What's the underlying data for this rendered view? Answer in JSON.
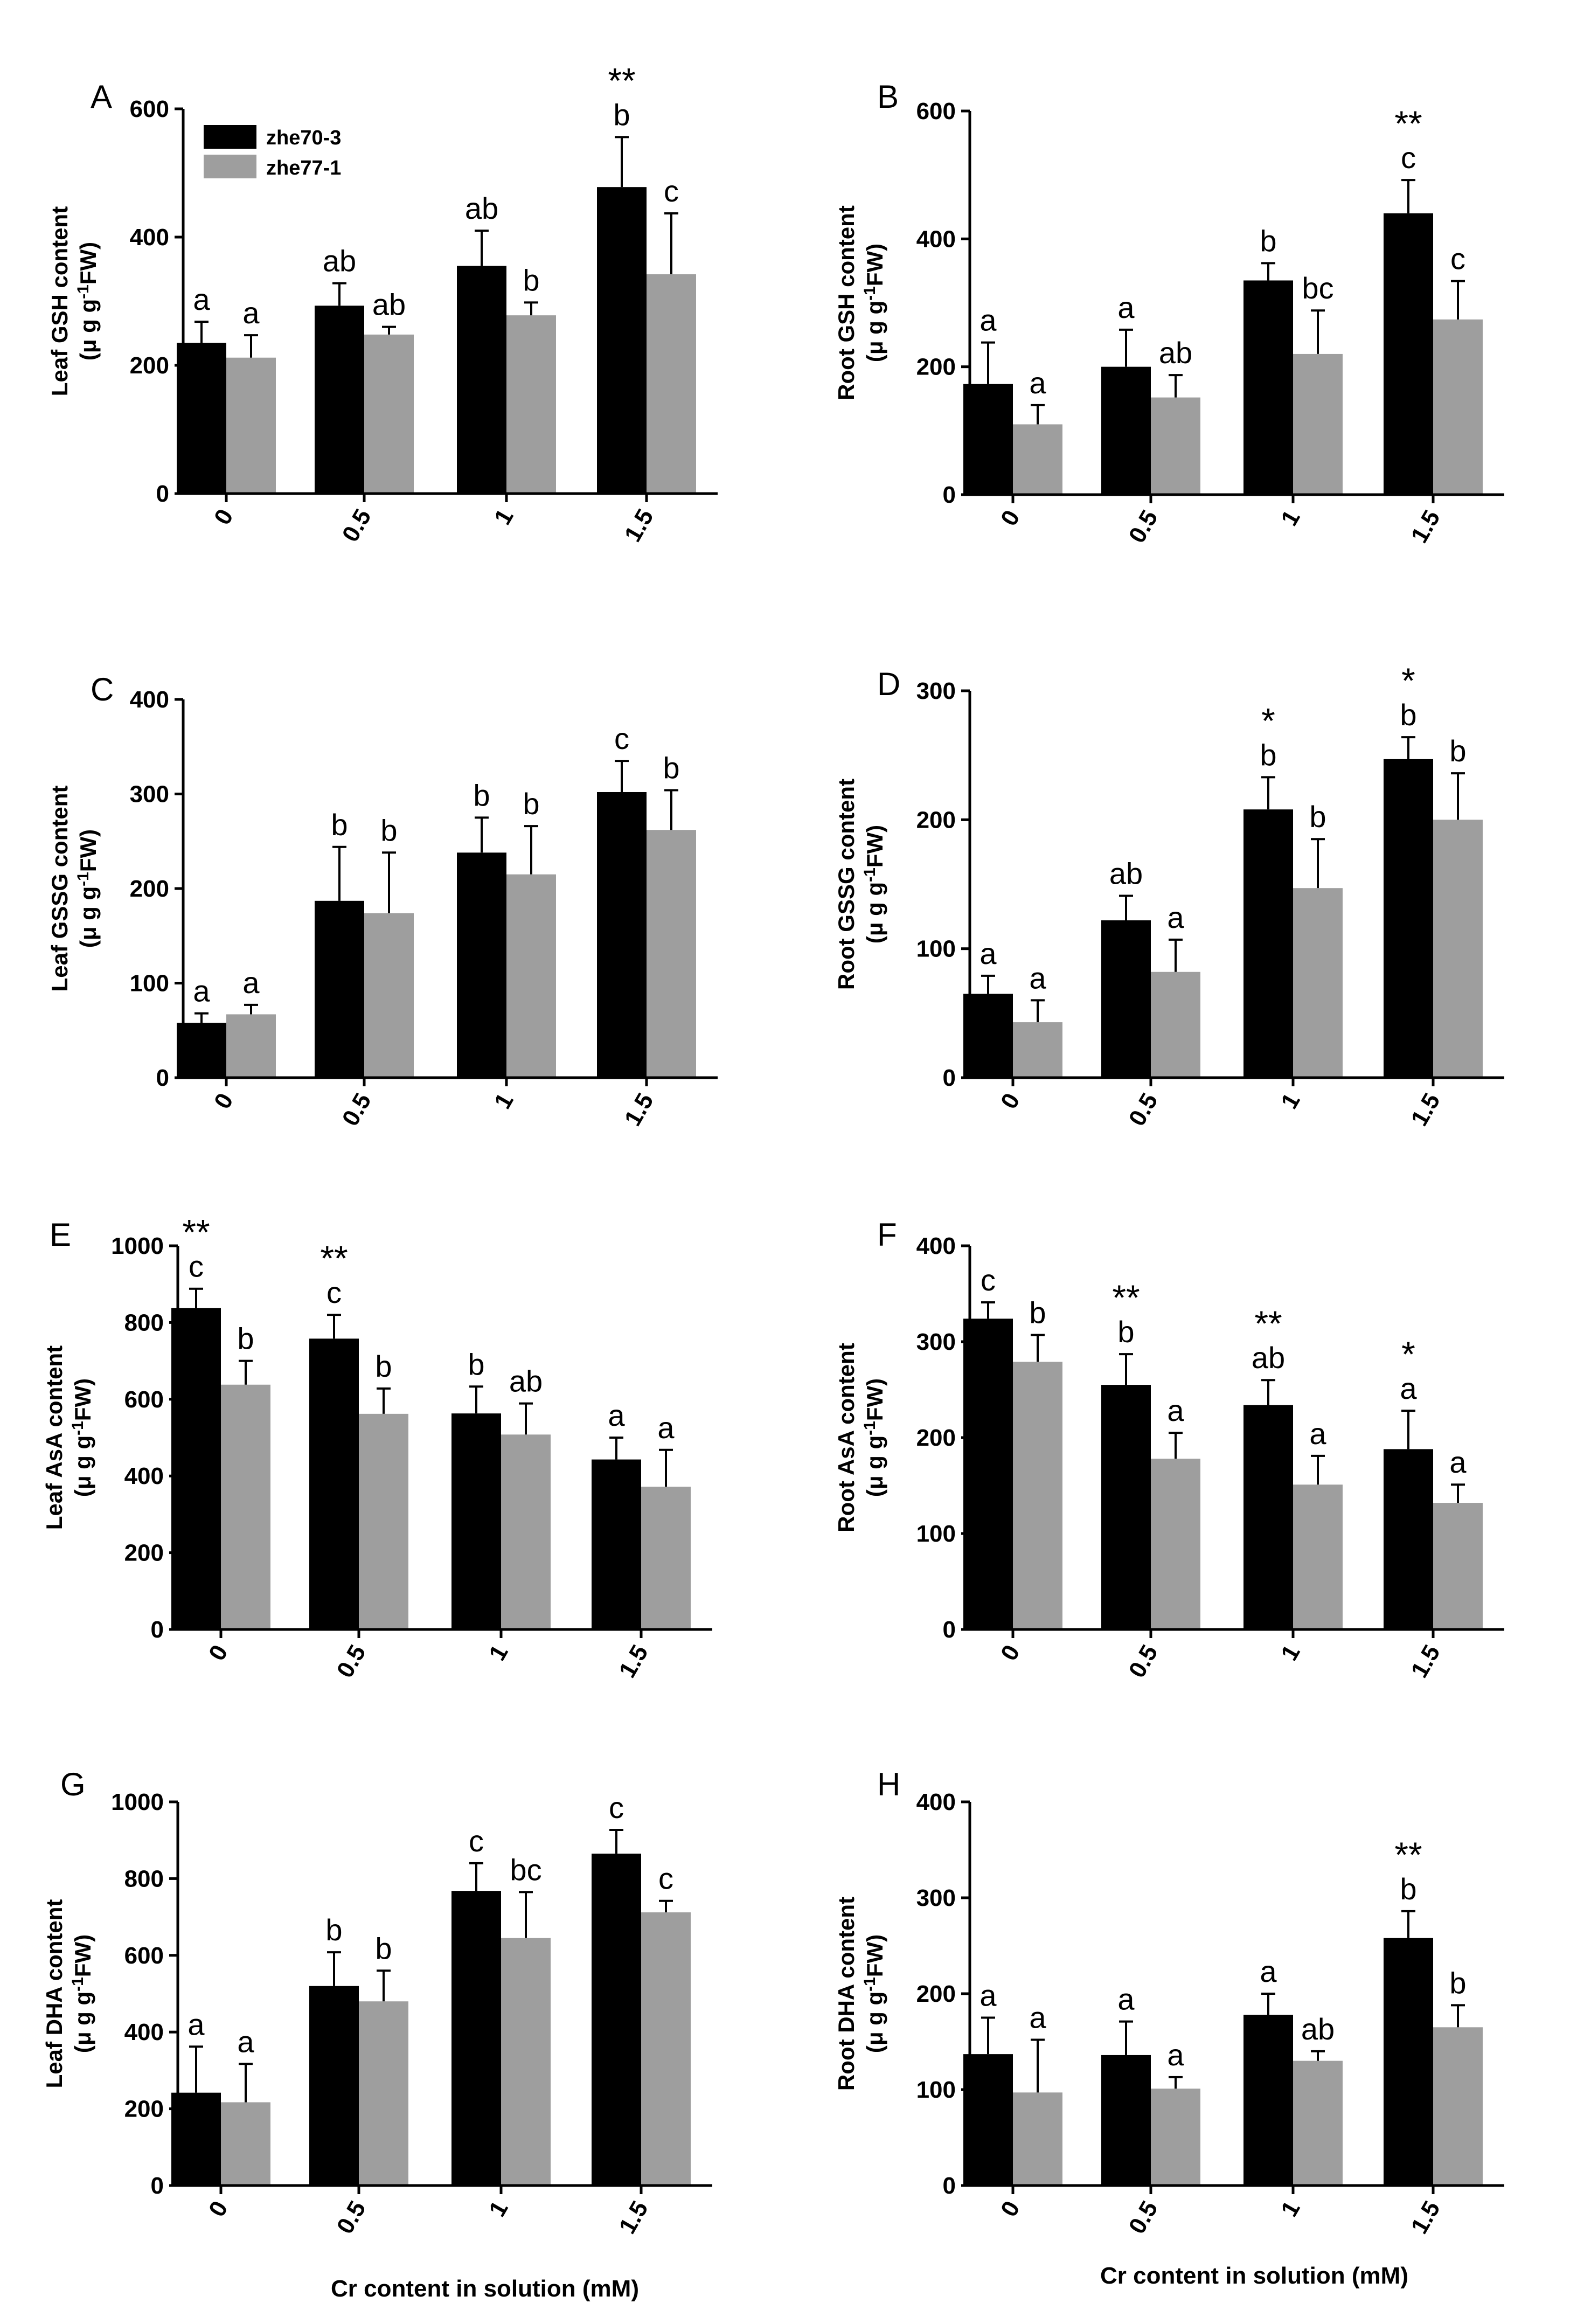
{
  "colors": {
    "zhe70_3": "#000000",
    "zhe77_1": "#9e9e9e",
    "axis": "#000000"
  },
  "legend": [
    "zhe70-3",
    "zhe77-1"
  ],
  "xlabel": "Cr content in solution (mM)",
  "chart_data": [
    {
      "type": "bar",
      "panel": "A",
      "title": "",
      "ylabel": "Leaf GSH content",
      "yunit": "(μ g g-1FW)",
      "ylabel_tspans": [
        "(μ g g",
        "-1",
        "FW)"
      ],
      "categories": [
        "0",
        "0.5",
        "1",
        "1.5"
      ],
      "ylim": [
        0,
        600
      ],
      "yticks": [
        "0",
        "200",
        "400",
        "600"
      ],
      "series": [
        {
          "name": "zhe70-3",
          "values": [
            235,
            293,
            355,
            478
          ],
          "errors": [
            33,
            35,
            55,
            78
          ],
          "letters": [
            "a",
            "ab",
            "ab",
            "b"
          ]
        },
        {
          "name": "zhe77-1",
          "values": [
            212,
            248,
            278,
            342
          ],
          "errors": [
            35,
            12,
            20,
            95
          ],
          "letters": [
            "a",
            "ab",
            "b",
            "c"
          ]
        }
      ],
      "stars": [
        "",
        "",
        "",
        "**"
      ]
    },
    {
      "type": "bar",
      "panel": "B",
      "title": "",
      "ylabel": "Root GSH content",
      "yunit": "(μ g g-1FW)",
      "ylabel_tspans": [
        "(μ g g",
        "-1",
        "FW)"
      ],
      "categories": [
        "0",
        "0.5",
        "1",
        "1.5"
      ],
      "ylim": [
        0,
        600
      ],
      "yticks": [
        "0",
        "200",
        "400",
        "600"
      ],
      "series": [
        {
          "name": "zhe70-3",
          "values": [
            173,
            200,
            335,
            440
          ],
          "errors": [
            65,
            58,
            27,
            52
          ],
          "letters": [
            "a",
            "a",
            "b",
            "c"
          ]
        },
        {
          "name": "zhe77-1",
          "values": [
            110,
            152,
            220,
            274
          ],
          "errors": [
            30,
            35,
            68,
            60
          ],
          "letters": [
            "a",
            "ab",
            "bc",
            "c"
          ]
        }
      ],
      "stars": [
        "",
        "",
        "",
        "**"
      ]
    },
    {
      "type": "bar",
      "panel": "C",
      "title": "",
      "ylabel": "Leaf GSSG content",
      "yunit": "(μ g g-1FW)",
      "ylabel_tspans": [
        "(μ g g",
        "-1",
        "FW)"
      ],
      "categories": [
        "0",
        "0.5",
        "1",
        "1.5"
      ],
      "ylim": [
        0,
        400
      ],
      "yticks": [
        "0",
        "100",
        "200",
        "300",
        "400"
      ],
      "series": [
        {
          "name": "zhe70-3",
          "values": [
            58,
            187,
            238,
            302
          ],
          "errors": [
            10,
            57,
            37,
            33
          ],
          "letters": [
            "a",
            "b",
            "b",
            "c"
          ]
        },
        {
          "name": "zhe77-1",
          "values": [
            67,
            174,
            215,
            262
          ],
          "errors": [
            10,
            64,
            51,
            42
          ],
          "letters": [
            "a",
            "b",
            "b",
            "b"
          ]
        }
      ],
      "stars": [
        "",
        "",
        "",
        ""
      ]
    },
    {
      "type": "bar",
      "panel": "D",
      "title": "",
      "ylabel": "Root GSSG content",
      "yunit": "(μ g g-1FW)",
      "ylabel_tspans": [
        "(μ g g",
        "-1",
        "FW)"
      ],
      "categories": [
        "0",
        "0.5",
        "1",
        "1.5"
      ],
      "ylim": [
        0,
        300
      ],
      "yticks": [
        "0",
        "100",
        "200",
        "300"
      ],
      "series": [
        {
          "name": "zhe70-3",
          "values": [
            65,
            122,
            208,
            247
          ],
          "errors": [
            14,
            19,
            25,
            17
          ],
          "letters": [
            "a",
            "ab",
            "b",
            "b"
          ]
        },
        {
          "name": "zhe77-1",
          "values": [
            43,
            82,
            147,
            200
          ],
          "errors": [
            17,
            25,
            38,
            36
          ],
          "letters": [
            "a",
            "a",
            "b",
            "b"
          ]
        }
      ],
      "stars": [
        "",
        "",
        "*",
        "*"
      ]
    },
    {
      "type": "bar",
      "panel": "E",
      "title": "",
      "ylabel": "Leaf AsA content",
      "yunit": "(μ g g-1FW)",
      "ylabel_tspans": [
        "(μ g g",
        "-1",
        "FW)"
      ],
      "categories": [
        "0",
        "0.5",
        "1",
        "1.5"
      ],
      "ylim": [
        0,
        1000
      ],
      "yticks": [
        "0",
        "200",
        "400",
        "600",
        "800",
        "1000"
      ],
      "series": [
        {
          "name": "zhe70-3",
          "values": [
            838,
            758,
            563,
            443
          ],
          "errors": [
            50,
            62,
            70,
            57
          ],
          "letters": [
            "c",
            "c",
            "b",
            "a"
          ]
        },
        {
          "name": "zhe77-1",
          "values": [
            638,
            562,
            508,
            372
          ],
          "errors": [
            62,
            66,
            81,
            96
          ],
          "letters": [
            "b",
            "b",
            "ab",
            "a"
          ]
        }
      ],
      "stars": [
        "**",
        "**",
        "",
        ""
      ]
    },
    {
      "type": "bar",
      "panel": "F",
      "title": "",
      "ylabel": "Root AsA content",
      "yunit": "(μ g g-1FW)",
      "ylabel_tspans": [
        "(μ g g",
        "-1",
        "FW)"
      ],
      "categories": [
        "0",
        "0.5",
        "1",
        "1.5"
      ],
      "ylim": [
        0,
        400
      ],
      "yticks": [
        "0",
        "100",
        "200",
        "300",
        "400"
      ],
      "series": [
        {
          "name": "zhe70-3",
          "values": [
            324,
            255,
            234,
            188
          ],
          "errors": [
            17,
            32,
            26,
            40
          ],
          "letters": [
            "c",
            "b",
            "ab",
            "a"
          ]
        },
        {
          "name": "zhe77-1",
          "values": [
            279,
            178,
            151,
            132
          ],
          "errors": [
            28,
            27,
            30,
            19
          ],
          "letters": [
            "b",
            "a",
            "a",
            "a"
          ]
        }
      ],
      "stars": [
        "",
        "**",
        "**",
        "*"
      ]
    },
    {
      "type": "bar",
      "panel": "G",
      "title": "",
      "ylabel": "Leaf DHA content",
      "yunit": "(μ g g-1FW)",
      "ylabel_tspans": [
        "(μ g g",
        "-1",
        "FW)"
      ],
      "categories": [
        "0",
        "0.5",
        "1",
        "1.5"
      ],
      "ylim": [
        0,
        1000
      ],
      "yticks": [
        "0",
        "200",
        "400",
        "600",
        "800",
        "1000"
      ],
      "series": [
        {
          "name": "zhe70-3",
          "values": [
            242,
            520,
            768,
            865
          ],
          "errors": [
            120,
            88,
            72,
            62
          ],
          "letters": [
            "a",
            "b",
            "c",
            "c"
          ]
        },
        {
          "name": "zhe77-1",
          "values": [
            217,
            480,
            645,
            712
          ],
          "errors": [
            100,
            80,
            120,
            30
          ],
          "letters": [
            "a",
            "b",
            "bc",
            "c"
          ]
        }
      ],
      "stars": [
        "",
        "",
        "",
        ""
      ]
    },
    {
      "type": "bar",
      "panel": "H",
      "title": "",
      "ylabel": "Root DHA content",
      "yunit": "(μ g g-1FW)",
      "ylabel_tspans": [
        "(μ g g",
        "-1",
        "FW)"
      ],
      "categories": [
        "0",
        "0.5",
        "1",
        "1.5"
      ],
      "ylim": [
        0,
        400
      ],
      "yticks": [
        "0",
        "100",
        "200",
        "300",
        "400"
      ],
      "series": [
        {
          "name": "zhe70-3",
          "values": [
            137,
            136,
            178,
            258
          ],
          "errors": [
            38,
            35,
            22,
            28
          ],
          "letters": [
            "a",
            "a",
            "a",
            "b"
          ]
        },
        {
          "name": "zhe77-1",
          "values": [
            97,
            101,
            130,
            165
          ],
          "errors": [
            55,
            12,
            10,
            23
          ],
          "letters": [
            "a",
            "a",
            "ab",
            "b"
          ]
        }
      ],
      "stars": [
        "",
        "",
        "",
        "**"
      ]
    }
  ]
}
